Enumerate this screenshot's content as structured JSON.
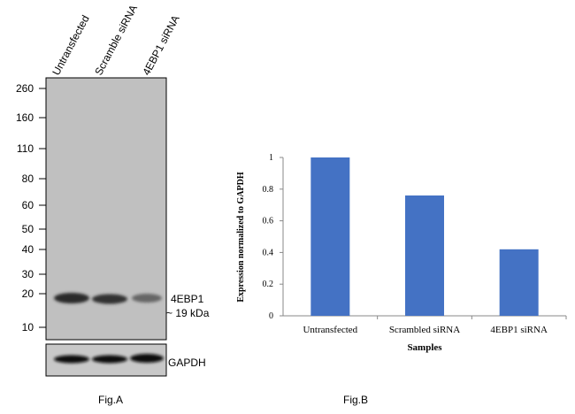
{
  "blot": {
    "lanes": [
      "Untransfected",
      "Scramble siRNA",
      "4EBP1 siRNA"
    ],
    "markers": [
      260,
      160,
      110,
      80,
      60,
      50,
      40,
      30,
      20,
      10
    ],
    "band_label": "4EBP1",
    "band_size": "~ 19 kDa",
    "control_label": "GAPDH",
    "caption": "Fig.A"
  },
  "chart_data": {
    "type": "bar",
    "caption": "Fig.B",
    "y_label": "Expression normalized to GAPDH",
    "x_label": "Samples",
    "categories": [
      "Untransfected",
      "Scrambled siRNA",
      "4EBP1 siRNA"
    ],
    "values": [
      1,
      0.76,
      0.42
    ],
    "color": "#4472c4",
    "ylim": [
      0,
      1
    ],
    "yticks": [
      0,
      0.2,
      0.4,
      0.6,
      0.8,
      1
    ]
  }
}
